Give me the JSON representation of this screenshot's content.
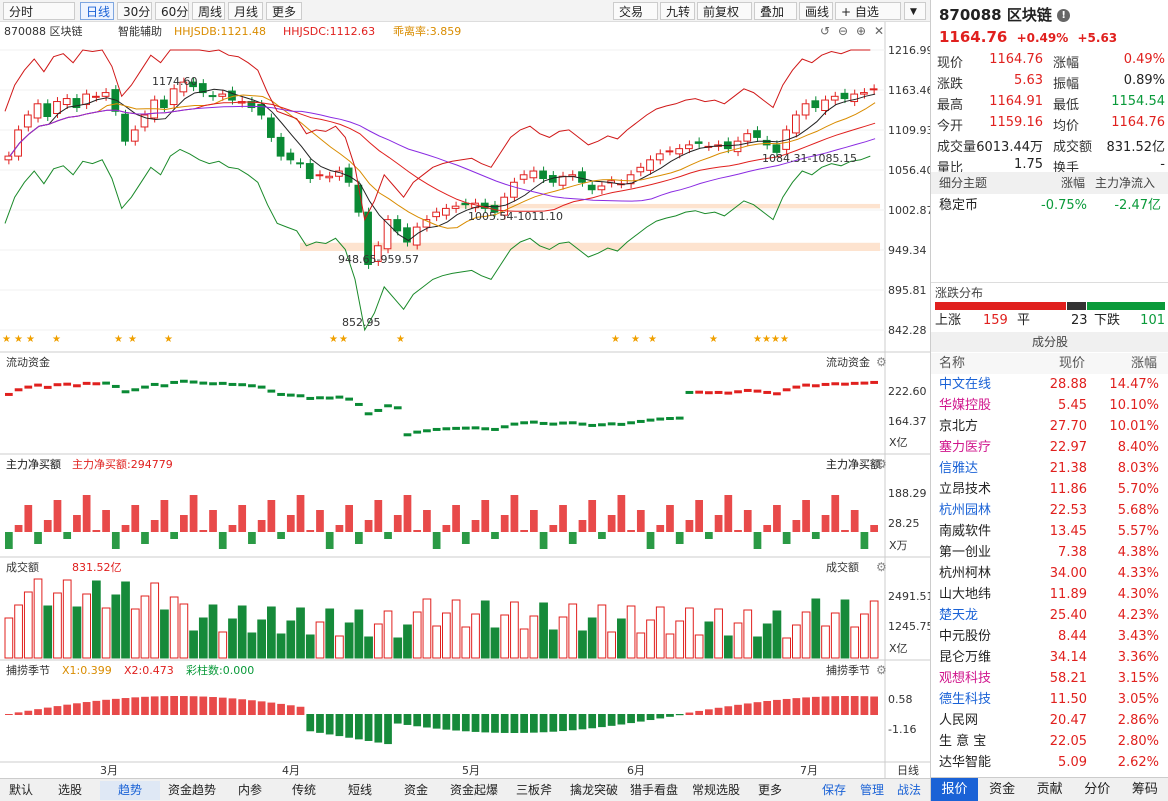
{
  "toolbar": {
    "left": [
      {
        "label": "分时",
        "dd": true
      },
      {
        "label": "日线",
        "active": true
      },
      {
        "label": "30分"
      },
      {
        "label": "60分"
      },
      {
        "label": "周线"
      },
      {
        "label": "月线"
      },
      {
        "label": "更多",
        "dd": true
      }
    ],
    "right": [
      {
        "label": "交易",
        "dd": true
      },
      {
        "label": "九转"
      },
      {
        "label": "前复权",
        "dd": true
      },
      {
        "label": "叠加",
        "dd": true
      },
      {
        "label": "画线"
      },
      {
        "label": "+ 自选",
        "dd": true
      }
    ]
  },
  "main_chart": {
    "title": "870088 区块链",
    "assist": "智能辅助",
    "hhjsdb": "HHJSDB:1121.48",
    "hhjsdc": "HHJSDC:1112.63",
    "deviation": "乖离率:3.859",
    "y_ticks": [
      "1216.99",
      "1163.46",
      "1109.93",
      "1056.40",
      "1002.87",
      "949.34",
      "895.81",
      "842.28"
    ],
    "annotations": [
      "1174.60",
      "948.65-959.57",
      "852.95",
      "1005.54-1011.10",
      "1084.31-1085.15"
    ],
    "ylim": [
      842.28,
      1216.99
    ]
  },
  "panel_flow": {
    "title": "流动资金",
    "title_r": "流动资金",
    "y_ticks": [
      "222.60",
      "164.37"
    ],
    "unit": "X亿"
  },
  "panel_net": {
    "title": "主力净买额",
    "sub": "主力净买额:294779",
    "title_r": "主力净买额",
    "y_ticks": [
      "188.29",
      "28.25"
    ],
    "unit": "X万"
  },
  "panel_vol": {
    "title": "成交额",
    "sub": "831.52亿",
    "title_r": "成交额",
    "y_ticks": [
      "2491.51",
      "1245.75"
    ],
    "unit": "X亿"
  },
  "panel_season": {
    "title": "捕捞季节",
    "x1": "X1:0.399",
    "x2": "X2:0.473",
    "bars": "彩柱数:0.000",
    "title_r": "捕捞季节",
    "y_ticks": [
      "0.58",
      "-1.16"
    ]
  },
  "x_labels": [
    "3月",
    "4月",
    "5月",
    "6月",
    "7月"
  ],
  "period_label": "日线",
  "chart_data": {
    "type": "candlestick",
    "x_months": [
      "3月",
      "4月",
      "5月",
      "6月",
      "7月"
    ],
    "ylim": [
      842.28,
      1216.99
    ],
    "closes": [
      1075,
      1110,
      1130,
      1145,
      1128,
      1148,
      1152,
      1140,
      1158,
      1155,
      1160,
      1135,
      1095,
      1110,
      1130,
      1150,
      1140,
      1165,
      1174,
      1168,
      1160,
      1155,
      1158,
      1150,
      1148,
      1140,
      1130,
      1100,
      1075,
      1070,
      1065,
      1045,
      1050,
      1048,
      1055,
      1040,
      1000,
      930,
      955,
      990,
      975,
      960,
      980,
      990,
      1000,
      1005,
      1008,
      1010,
      1012,
      1005,
      1000,
      1020,
      1040,
      1050,
      1055,
      1045,
      1040,
      1048,
      1050,
      1040,
      1030,
      1035,
      1042,
      1038,
      1050,
      1060,
      1070,
      1078,
      1082,
      1085,
      1090,
      1092,
      1088,
      1090,
      1085,
      1095,
      1105,
      1100,
      1090,
      1080,
      1110,
      1130,
      1145,
      1140,
      1150,
      1155,
      1152,
      1158,
      1160,
      1165
    ]
  },
  "right": {
    "code": "870088 区块链",
    "price": "1164.76",
    "chg_pct": "+0.49%",
    "chg": "+5.63",
    "quote": [
      {
        "l": "现价",
        "v": "1164.76",
        "vc": "red",
        "l2": "涨幅",
        "v2": "0.49%",
        "v2c": "red"
      },
      {
        "l": "涨跌",
        "v": "5.63",
        "vc": "red",
        "l2": "振幅",
        "v2": "0.89%",
        "v2c": ""
      },
      {
        "l": "最高",
        "v": "1164.91",
        "vc": "red",
        "l2": "最低",
        "v2": "1154.54",
        "v2c": "green"
      },
      {
        "l": "今开",
        "v": "1159.16",
        "vc": "red",
        "l2": "均价",
        "v2": "1164.76",
        "v2c": "red"
      },
      {
        "l": "成交量",
        "v": "6013.44万",
        "vc": "",
        "l2": "成交额",
        "v2": "831.52亿",
        "v2c": ""
      },
      {
        "l": "量比",
        "v": "1.75",
        "vc": "",
        "l2": "换手",
        "v2": "-",
        "v2c": ""
      }
    ],
    "theme_head": {
      "a": "细分主题",
      "b": "涨幅",
      "c": "主力净流入"
    },
    "theme": {
      "name": "稳定币",
      "chg": "-0.75%",
      "flow": "-2.47亿"
    },
    "dist_title": "涨跌分布",
    "dist": {
      "up_label": "上涨",
      "up": "159",
      "flat_label": "平",
      "flat": "23",
      "down_label": "下跌",
      "down": "101"
    },
    "comp_title": "成分股",
    "comp_head": {
      "name": "名称",
      "price": "现价",
      "chg": "涨幅"
    },
    "components": [
      {
        "n": "中文在线",
        "p": "28.88",
        "c": "14.47%",
        "col": "blue"
      },
      {
        "n": "华媒控股",
        "p": "5.45",
        "c": "10.10%",
        "col": "mag"
      },
      {
        "n": "京北方",
        "p": "27.70",
        "c": "10.01%",
        "col": ""
      },
      {
        "n": "塞力医疗",
        "p": "22.97",
        "c": "8.40%",
        "col": "mag"
      },
      {
        "n": "信雅达",
        "p": "21.38",
        "c": "8.03%",
        "col": "blue"
      },
      {
        "n": "立昂技术",
        "p": "11.86",
        "c": "5.70%",
        "col": ""
      },
      {
        "n": "杭州园林",
        "p": "22.53",
        "c": "5.68%",
        "col": "blue"
      },
      {
        "n": "南威软件",
        "p": "13.45",
        "c": "5.57%",
        "col": ""
      },
      {
        "n": "第一创业",
        "p": "7.38",
        "c": "4.38%",
        "col": ""
      },
      {
        "n": "杭州柯林",
        "p": "34.00",
        "c": "4.33%",
        "col": ""
      },
      {
        "n": "山大地纬",
        "p": "11.89",
        "c": "4.30%",
        "col": ""
      },
      {
        "n": "楚天龙",
        "p": "25.40",
        "c": "4.23%",
        "col": "blue"
      },
      {
        "n": "中元股份",
        "p": "8.44",
        "c": "3.43%",
        "col": ""
      },
      {
        "n": "昆仑万维",
        "p": "34.14",
        "c": "3.36%",
        "col": ""
      },
      {
        "n": "观想科技",
        "p": "58.21",
        "c": "3.15%",
        "col": "mag"
      },
      {
        "n": "德生科技",
        "p": "11.50",
        "c": "3.05%",
        "col": "blue"
      },
      {
        "n": "人民网",
        "p": "20.47",
        "c": "2.86%",
        "col": ""
      },
      {
        "n": "生 意 宝",
        "p": "22.05",
        "c": "2.80%",
        "col": ""
      },
      {
        "n": "达华智能",
        "p": "5.09",
        "c": "2.62%",
        "col": ""
      }
    ],
    "tabs": [
      {
        "label": "报价",
        "active": true
      },
      {
        "label": "资金"
      },
      {
        "label": "贡献"
      },
      {
        "label": "分价"
      },
      {
        "label": "筹码"
      }
    ]
  },
  "bottom_tabs": [
    {
      "label": "默认"
    },
    {
      "label": "选股"
    },
    {
      "label": "趋势",
      "active": true
    },
    {
      "label": "资金趋势"
    },
    {
      "label": "内参"
    },
    {
      "label": "传统"
    },
    {
      "label": "短线"
    },
    {
      "label": "资金"
    },
    {
      "label": "资金起爆"
    },
    {
      "label": "三板斧"
    },
    {
      "label": "擒龙突破"
    },
    {
      "label": "猎手看盘"
    },
    {
      "label": "常规选股"
    },
    {
      "label": "更多"
    }
  ],
  "bottom_right": [
    {
      "label": "保存"
    },
    {
      "label": "管理"
    },
    {
      "label": "战法"
    }
  ]
}
